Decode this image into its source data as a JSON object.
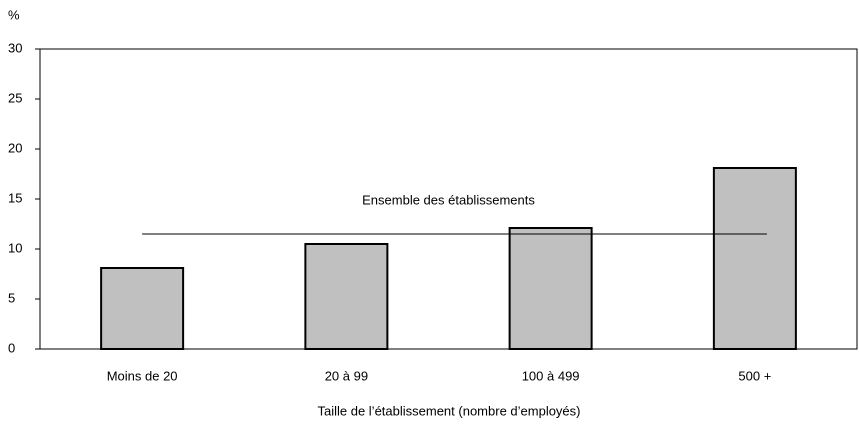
{
  "chart_data": {
    "type": "bar",
    "y_label": "%",
    "x_label": "Taille de l’établissement (nombre d’employés)",
    "categories": [
      "Moins de 20",
      "20 à 99",
      "100 à 499",
      "500 +"
    ],
    "values": [
      8.1,
      10.5,
      12.1,
      18.1
    ],
    "color": "#c0c0c0",
    "ylim": [
      0,
      30
    ],
    "yticks": [
      0,
      5,
      10,
      15,
      20,
      25,
      30
    ],
    "reference": {
      "label": "Ensemble des établissements",
      "value": 11.5
    }
  }
}
